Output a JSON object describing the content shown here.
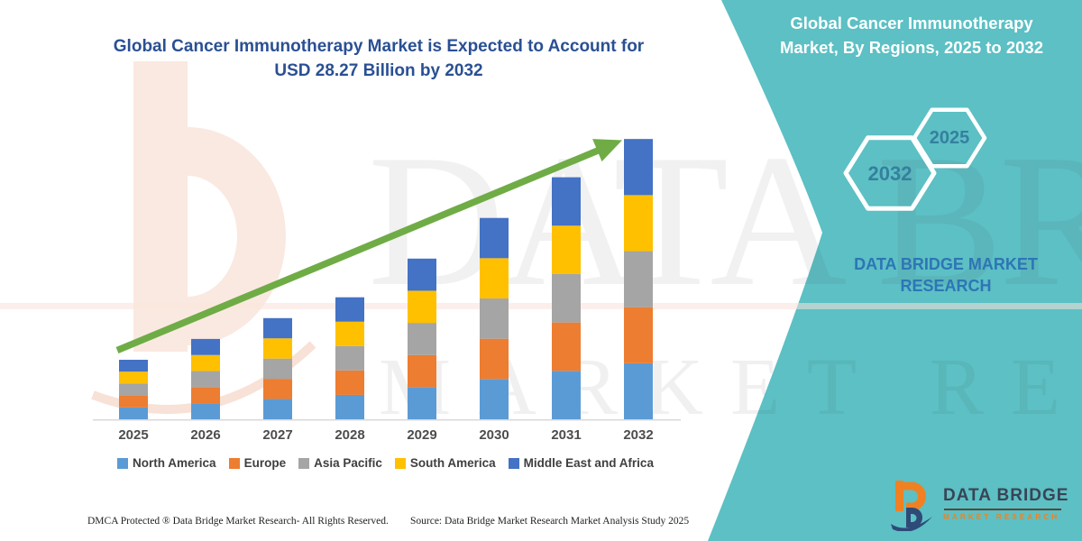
{
  "colors": {
    "teal_panel": "#5CC0C4",
    "title_blue": "#2A5093",
    "brand_blue": "#2E75B6",
    "hexagon_text_blue": "#35809E",
    "arrow_green": "#6FAC46",
    "logo_orange": "#EF8123",
    "logo_navy": "#2E4A77",
    "axis_line": "#D8D8D8",
    "watermark_peach": "#FAE6DC"
  },
  "left": {
    "title_line1": "Global Cancer Immunotherapy Market is Expected to Account for",
    "title_line2": "USD 28.27 Billion by 2032"
  },
  "right_panel": {
    "title_line1": "Global Cancer Immunotherapy",
    "title_line2": "Market, By Regions, 2025 to 2032",
    "hexagons": [
      {
        "label": "2032"
      },
      {
        "label": "2025"
      }
    ],
    "brand_line1": "DATA BRIDGE MARKET",
    "brand_line2": "RESEARCH"
  },
  "watermark": {
    "line1": "DATA BRIDGE",
    "line2": "MARKET RESEARCH"
  },
  "chart_data": {
    "type": "bar",
    "stacked": true,
    "title": "Global Cancer Immunotherapy Market is Expected to Account for USD 28.27 Billion by 2032",
    "unit": "USD billion",
    "categories": [
      "2025",
      "2026",
      "2027",
      "2028",
      "2029",
      "2030",
      "2031",
      "2032"
    ],
    "series": [
      {
        "name": "North America",
        "color": "#5B9BD5",
        "values": [
          1.2,
          1.62,
          2.04,
          2.46,
          3.24,
          4.06,
          4.88,
          5.65
        ]
      },
      {
        "name": "Europe",
        "color": "#ED7D31",
        "values": [
          1.2,
          1.62,
          2.04,
          2.46,
          3.24,
          4.06,
          4.88,
          5.65
        ]
      },
      {
        "name": "Asia Pacific",
        "color": "#A5A5A5",
        "values": [
          1.2,
          1.62,
          2.04,
          2.46,
          3.24,
          4.06,
          4.88,
          5.65
        ]
      },
      {
        "name": "South America",
        "color": "#FFC000",
        "values": [
          1.2,
          1.62,
          2.04,
          2.46,
          3.24,
          4.06,
          4.88,
          5.65
        ]
      },
      {
        "name": "Middle East and Africa",
        "color": "#4472C4",
        "values": [
          1.2,
          1.62,
          2.04,
          2.46,
          3.24,
          4.06,
          4.88,
          5.66
        ]
      }
    ],
    "totals_estimated": [
      6.0,
      8.1,
      10.2,
      12.3,
      16.2,
      20.3,
      24.4,
      28.27
    ],
    "ylim": [
      0,
      28.27
    ],
    "gridlines": false,
    "y_axis_visible": false,
    "legend_position": "bottom",
    "annotations": [
      "upward green trend arrow from 2025 to 2032"
    ]
  },
  "footer": {
    "dmca": "DMCA Protected ® Data Bridge Market Research-  All Rights Reserved.",
    "source": "Source: Data Bridge Market Research  Market Analysis Study 2025"
  },
  "logo": {
    "name": "DATA BRIDGE",
    "sub": "MARKET RESEARCH"
  }
}
